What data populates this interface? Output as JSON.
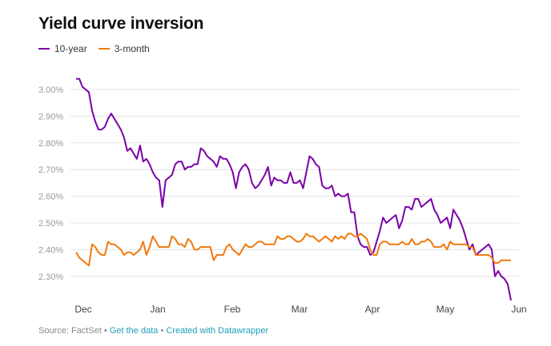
{
  "title": "Yield curve inversion",
  "legend": [
    {
      "label": "10-year",
      "color": "#7b00a8"
    },
    {
      "label": "3-month",
      "color": "#ef7a0f"
    }
  ],
  "footer": {
    "source": "Source: FactSet",
    "sep1": " • ",
    "link1": "Get the data",
    "sep2": " • ",
    "link2": "Created with Datawrapper"
  },
  "chart_data": {
    "type": "line",
    "x_tick_labels": [
      "Dec",
      "Jan",
      "Feb",
      "Mar",
      "Apr",
      "May",
      "Jun"
    ],
    "y_tick_labels": [
      "3.00%",
      "2.90%",
      "2.80%",
      "2.70%",
      "2.60%",
      "2.50%",
      "2.40%",
      "2.30%"
    ],
    "ylim": [
      2.2,
      3.05
    ],
    "grid": true,
    "legend_position": "top-left",
    "series": [
      {
        "name": "10-year",
        "color": "#7b00a8",
        "values": [
          3.04,
          3.04,
          3.01,
          3.0,
          2.99,
          2.92,
          2.88,
          2.85,
          2.85,
          2.86,
          2.89,
          2.91,
          2.89,
          2.87,
          2.85,
          2.82,
          2.77,
          2.78,
          2.76,
          2.74,
          2.79,
          2.73,
          2.74,
          2.72,
          2.69,
          2.67,
          2.66,
          2.56,
          2.66,
          2.67,
          2.68,
          2.72,
          2.73,
          2.73,
          2.7,
          2.71,
          2.71,
          2.72,
          2.72,
          2.78,
          2.77,
          2.75,
          2.74,
          2.73,
          2.71,
          2.75,
          2.74,
          2.74,
          2.72,
          2.69,
          2.63,
          2.69,
          2.71,
          2.72,
          2.7,
          2.65,
          2.63,
          2.64,
          2.66,
          2.68,
          2.71,
          2.64,
          2.67,
          2.66,
          2.66,
          2.65,
          2.65,
          2.69,
          2.65,
          2.65,
          2.66,
          2.63,
          2.69,
          2.75,
          2.74,
          2.72,
          2.71,
          2.64,
          2.63,
          2.63,
          2.64,
          2.6,
          2.61,
          2.6,
          2.6,
          2.61,
          2.54,
          2.54,
          2.45,
          2.42,
          2.41,
          2.41,
          2.38,
          2.39,
          2.43,
          2.47,
          2.52,
          2.5,
          2.51,
          2.52,
          2.53,
          2.48,
          2.51,
          2.56,
          2.56,
          2.55,
          2.59,
          2.59,
          2.56,
          2.57,
          2.58,
          2.59,
          2.55,
          2.53,
          2.5,
          2.51,
          2.52,
          2.48,
          2.55,
          2.53,
          2.51,
          2.48,
          2.44,
          2.4,
          2.42,
          2.38,
          2.39,
          2.4,
          2.41,
          2.42,
          2.4,
          2.3,
          2.32,
          2.3,
          2.29,
          2.27,
          2.21
        ]
      },
      {
        "name": "3-month",
        "color": "#ef7a0f",
        "values": [
          2.39,
          2.37,
          2.36,
          2.35,
          2.34,
          2.42,
          2.41,
          2.39,
          2.38,
          2.38,
          2.43,
          2.42,
          2.42,
          2.41,
          2.4,
          2.38,
          2.39,
          2.39,
          2.38,
          2.39,
          2.4,
          2.43,
          2.38,
          2.41,
          2.45,
          2.43,
          2.41,
          2.41,
          2.41,
          2.41,
          2.45,
          2.44,
          2.42,
          2.42,
          2.41,
          2.44,
          2.43,
          2.4,
          2.4,
          2.41,
          2.41,
          2.41,
          2.41,
          2.36,
          2.38,
          2.38,
          2.38,
          2.41,
          2.42,
          2.4,
          2.39,
          2.38,
          2.4,
          2.42,
          2.41,
          2.41,
          2.42,
          2.43,
          2.43,
          2.42,
          2.42,
          2.42,
          2.42,
          2.45,
          2.44,
          2.44,
          2.45,
          2.45,
          2.44,
          2.43,
          2.43,
          2.44,
          2.46,
          2.45,
          2.45,
          2.44,
          2.43,
          2.44,
          2.45,
          2.44,
          2.43,
          2.45,
          2.44,
          2.45,
          2.44,
          2.46,
          2.46,
          2.45,
          2.45,
          2.46,
          2.45,
          2.44,
          2.4,
          2.38,
          2.38,
          2.42,
          2.43,
          2.43,
          2.42,
          2.42,
          2.42,
          2.42,
          2.43,
          2.42,
          2.42,
          2.44,
          2.42,
          2.42,
          2.43,
          2.43,
          2.44,
          2.43,
          2.41,
          2.41,
          2.41,
          2.42,
          2.4,
          2.43,
          2.42,
          2.42,
          2.42,
          2.42,
          2.42,
          2.41,
          2.41,
          2.38,
          2.38,
          2.38,
          2.38,
          2.38,
          2.37,
          2.35,
          2.35,
          2.36,
          2.36,
          2.36,
          2.36
        ]
      }
    ]
  }
}
